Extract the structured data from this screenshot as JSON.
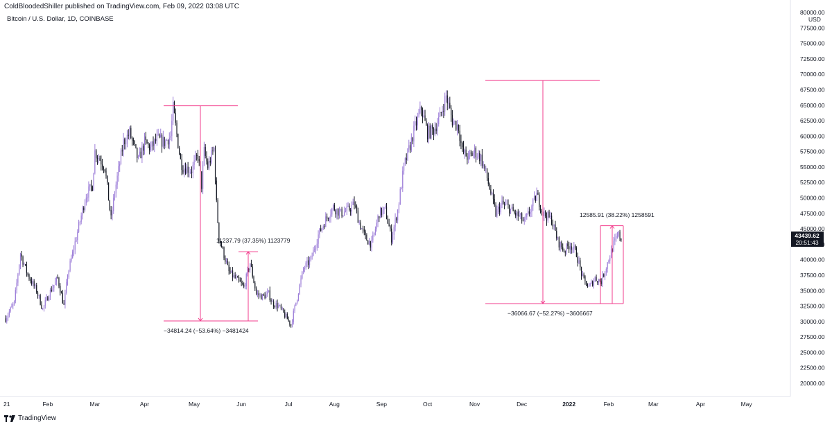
{
  "header": {
    "published": "ColdBloodedShiller published on TradingView.com, Feb 09, 2022 03:08 UTC",
    "symbol": "Bitcoin / U.S. Dollar, 1D, COINBASE"
  },
  "footer": {
    "brand": "TradingView",
    "icon": "tradingview-logo-icon"
  },
  "chart_data": {
    "type": "candlestick",
    "title": "",
    "ylabel": "USD",
    "ylim": [
      17500,
      80000
    ],
    "y_ticks": [
      "20000.00",
      "22500.00",
      "25000.00",
      "27500.00",
      "30000.00",
      "32500.00",
      "35000.00",
      "37500.00",
      "40000.00",
      "42500.00",
      "45000.00",
      "47500.00",
      "50000.00",
      "52500.00",
      "55000.00",
      "57500.00",
      "60000.00",
      "62500.00",
      "65000.00",
      "67500.00",
      "70000.00",
      "72500.00",
      "75000.00",
      "77500.00",
      "80000.00"
    ],
    "x_ticks": [
      {
        "label": "21",
        "bold": false
      },
      {
        "label": "Feb",
        "bold": false
      },
      {
        "label": "Mar",
        "bold": false
      },
      {
        "label": "Apr",
        "bold": false
      },
      {
        "label": "May",
        "bold": false
      },
      {
        "label": "Jun",
        "bold": false
      },
      {
        "label": "Jul",
        "bold": false
      },
      {
        "label": "Aug",
        "bold": false
      },
      {
        "label": "Sep",
        "bold": false
      },
      {
        "label": "Oct",
        "bold": false
      },
      {
        "label": "Nov",
        "bold": false
      },
      {
        "label": "Dec",
        "bold": false
      },
      {
        "label": "2022",
        "bold": true
      },
      {
        "label": "Feb",
        "bold": false
      },
      {
        "label": "Mar",
        "bold": false
      },
      {
        "label": "Apr",
        "bold": false
      },
      {
        "label": "May",
        "bold": false
      }
    ],
    "price_path": [
      [
        0,
        30500
      ],
      [
        7,
        33000
      ],
      [
        12,
        41000
      ],
      [
        18,
        37500
      ],
      [
        25,
        35000
      ],
      [
        30,
        32000
      ],
      [
        35,
        34500
      ],
      [
        42,
        37000
      ],
      [
        47,
        32500
      ],
      [
        50,
        37500
      ],
      [
        58,
        44500
      ],
      [
        62,
        48000
      ],
      [
        65,
        50500
      ],
      [
        70,
        52000
      ],
      [
        72,
        57500
      ],
      [
        80,
        55000
      ],
      [
        85,
        46500
      ],
      [
        88,
        51000
      ],
      [
        95,
        59000
      ],
      [
        100,
        60500
      ],
      [
        107,
        56000
      ],
      [
        112,
        59000
      ],
      [
        117,
        58000
      ],
      [
        122,
        59500
      ],
      [
        128,
        59000
      ],
      [
        133,
        60000
      ],
      [
        135,
        64500
      ],
      [
        141,
        56000
      ],
      [
        143,
        55000
      ],
      [
        150,
        54500
      ],
      [
        155,
        57000
      ],
      [
        158,
        52000
      ],
      [
        160,
        57500
      ],
      [
        163,
        55000
      ],
      [
        168,
        58000
      ],
      [
        170,
        49000
      ],
      [
        172,
        43500
      ],
      [
        175,
        41500
      ],
      [
        180,
        38000
      ],
      [
        185,
        37000
      ],
      [
        190,
        36000
      ],
      [
        192,
        35500
      ],
      [
        197,
        39500
      ],
      [
        202,
        34500
      ],
      [
        207,
        34000
      ],
      [
        212,
        34500
      ],
      [
        215,
        33000
      ],
      [
        220,
        32500
      ],
      [
        225,
        31000
      ],
      [
        230,
        29500
      ],
      [
        235,
        34000
      ],
      [
        240,
        38500
      ],
      [
        246,
        40000
      ],
      [
        252,
        44000
      ],
      [
        258,
        46500
      ],
      [
        264,
        48500
      ],
      [
        270,
        47500
      ],
      [
        276,
        48000
      ],
      [
        281,
        49000
      ],
      [
        285,
        46000
      ],
      [
        290,
        43500
      ],
      [
        295,
        42500
      ],
      [
        301,
        47500
      ],
      [
        306,
        48000
      ],
      [
        311,
        43500
      ],
      [
        316,
        48000
      ],
      [
        321,
        55000
      ],
      [
        326,
        58500
      ],
      [
        330,
        61500
      ],
      [
        335,
        64500
      ],
      [
        340,
        60500
      ],
      [
        345,
        61000
      ],
      [
        350,
        63000
      ],
      [
        355,
        66500
      ],
      [
        360,
        62500
      ],
      [
        365,
        61500
      ],
      [
        368,
        57500
      ],
      [
        373,
        56500
      ],
      [
        378,
        57500
      ],
      [
        383,
        56500
      ],
      [
        387,
        54000
      ],
      [
        392,
        50000
      ],
      [
        395,
        47500
      ],
      [
        400,
        49000
      ],
      [
        405,
        48500
      ],
      [
        410,
        47500
      ],
      [
        414,
        47000
      ],
      [
        418,
        46000
      ],
      [
        424,
        48500
      ],
      [
        428,
        50500
      ],
      [
        433,
        47500
      ],
      [
        440,
        46500
      ],
      [
        445,
        43000
      ],
      [
        450,
        41500
      ],
      [
        455,
        42500
      ],
      [
        460,
        41000
      ],
      [
        465,
        37000
      ],
      [
        470,
        35500
      ],
      [
        475,
        37000
      ],
      [
        480,
        36500
      ],
      [
        485,
        39500
      ],
      [
        490,
        42500
      ],
      [
        494,
        44000
      ],
      [
        496,
        43439
      ]
    ],
    "series": [
      {
        "name": "BTCUSD",
        "last": "43439.62"
      }
    ],
    "price_label": {
      "value": "43439.62",
      "countdown": "20:51:43",
      "color": "#131722"
    },
    "candle_colors": {
      "up": "#9c7dd8",
      "down": "#131722"
    },
    "accent": "#f23c8c",
    "measurements": [
      {
        "text": "−34814.24 (−53.64%) −3481424",
        "from": 64900,
        "to": 30100
      },
      {
        "text": "11237.79 (37.35%) 1123779",
        "from": 30100,
        "to": 41300
      },
      {
        "text": "−36066.67 (−52.27%) −3606667",
        "from": 69000,
        "to": 32900
      },
      {
        "text": "12585.91 (38.22%) 1258591",
        "from": 32900,
        "to": 45500
      }
    ]
  }
}
